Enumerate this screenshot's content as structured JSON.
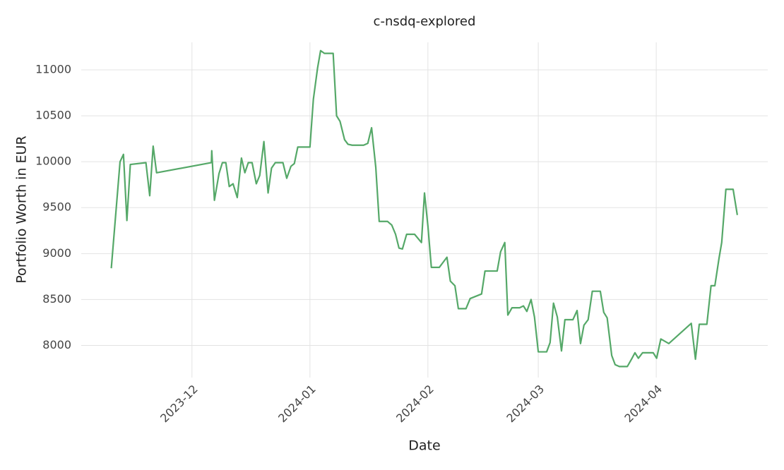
{
  "chart_data": {
    "type": "line",
    "title": "c-nsdq-explored",
    "x_label": "Date",
    "y_label": "Portfolio Worth in EUR",
    "color": "#55a868",
    "grid": true,
    "xlim": [
      -29.1,
      151.3
    ],
    "ylim": [
      7650,
      11300
    ],
    "xticks": [
      {
        "value": 0,
        "label": "2023-12"
      },
      {
        "value": 31,
        "label": "2024-01"
      },
      {
        "value": 62,
        "label": "2024-02"
      },
      {
        "value": 91,
        "label": "2024-03"
      },
      {
        "value": 122,
        "label": "2024-04"
      }
    ],
    "yticks": [
      8000,
      8500,
      9000,
      9500,
      10000,
      10500,
      11000
    ],
    "x": [
      -21.2,
      -18.9,
      -18,
      -17.1,
      -16.2,
      -12.1,
      -11.1,
      -10.2,
      -9.3,
      5.1,
      5.2,
      5.9,
      7.1,
      8,
      8.9,
      9.8,
      10.8,
      11.9,
      13,
      13.9,
      14.8,
      15.8,
      16.9,
      17.8,
      18.9,
      20,
      20.9,
      21.9,
      23.9,
      24.9,
      26,
      26.9,
      27.8,
      31,
      31.9,
      33,
      33.8,
      34.8,
      37.1,
      38,
      38.9,
      40.1,
      41,
      42.1,
      45.1,
      46.2,
      47.2,
      48.3,
      49.2,
      51.4,
      52.5,
      53.5,
      54.4,
      55.3,
      56.4,
      58.5,
      60.3,
      61.1,
      62,
      62.9,
      65,
      67,
      67.9,
      69.1,
      70,
      72,
      73.1,
      76.1,
      77,
      80.2,
      81.1,
      82.2,
      83,
      84.1,
      86.1,
      87.1,
      88,
      89.1,
      90,
      91,
      93.2,
      94.1,
      95,
      96,
      97.1,
      98,
      100.1,
      101.2,
      102.1,
      103,
      104.1,
      105.2,
      107.3,
      108.2,
      109.1,
      110.3,
      111.2,
      112.3,
      114.4,
      115.5,
      116.4,
      117.3,
      118.4,
      121.2,
      122.1,
      123.2,
      125.3,
      131.2,
      132.3,
      133.3,
      135.3,
      136.4,
      137.4,
      138.5,
      139.2,
      140.3,
      142.2,
      143.3
    ],
    "values": [
      8840,
      10000,
      10080,
      9360,
      9970,
      9990,
      9630,
      10170,
      9880,
      9990,
      10120,
      9580,
      9870,
      9990,
      9990,
      9730,
      9760,
      9610,
      10040,
      9880,
      9990,
      9990,
      9760,
      9850,
      10220,
      9660,
      9930,
      9990,
      9990,
      9820,
      9950,
      9980,
      10160,
      10160,
      10680,
      11020,
      11210,
      11180,
      11180,
      10500,
      10440,
      10240,
      10190,
      10180,
      10180,
      10200,
      10370,
      9940,
      9350,
      9350,
      9310,
      9210,
      9060,
      9050,
      9210,
      9210,
      9120,
      9660,
      9300,
      8850,
      8850,
      8960,
      8700,
      8650,
      8400,
      8400,
      8510,
      8560,
      8810,
      8810,
      9020,
      9120,
      8330,
      8410,
      8410,
      8430,
      8370,
      8500,
      8310,
      7930,
      7930,
      8030,
      8460,
      8310,
      7940,
      8280,
      8280,
      8380,
      8020,
      8220,
      8280,
      8590,
      8590,
      8360,
      8300,
      7890,
      7790,
      7770,
      7770,
      7850,
      7920,
      7860,
      7920,
      7920,
      7860,
      8070,
      8020,
      8240,
      7850,
      8230,
      8230,
      8650,
      8650,
      8950,
      9120,
      9700,
      9700,
      9420
    ]
  }
}
